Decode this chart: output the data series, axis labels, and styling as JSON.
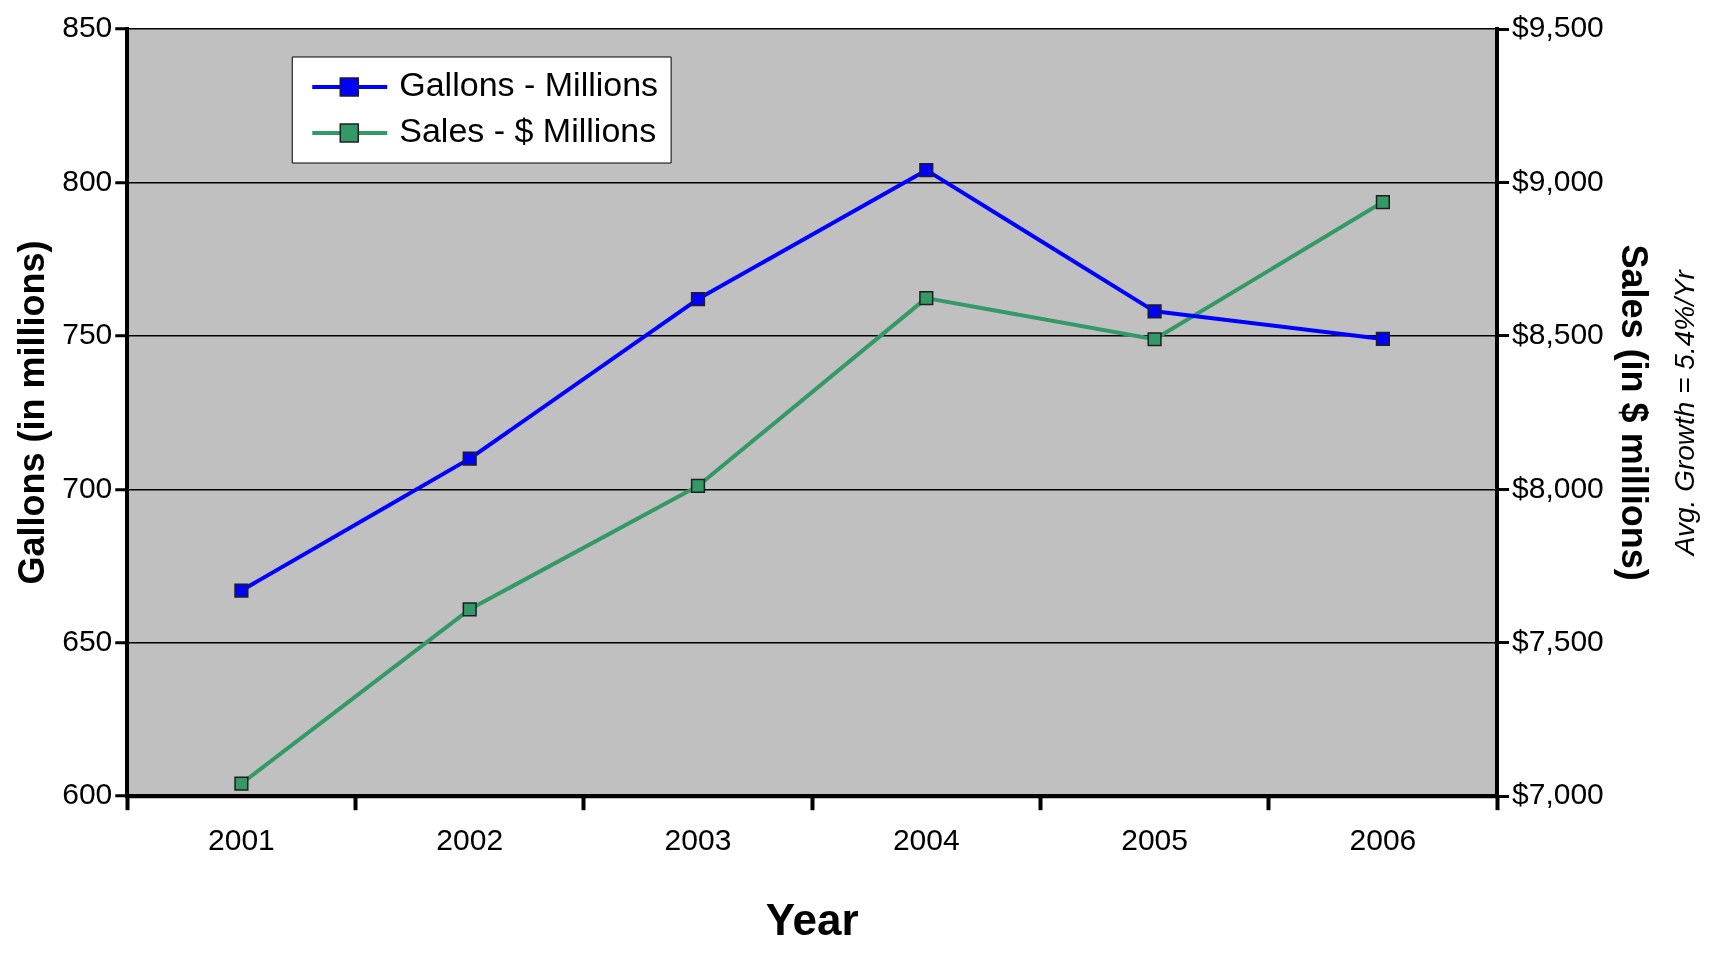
{
  "chart_data": {
    "type": "line",
    "xlabel": "Year",
    "ylabel": "Gallons (in millions)",
    "y2label": "Sales (in $ millions)",
    "categories": [
      "2001",
      "2002",
      "2003",
      "2004",
      "2005",
      "2006"
    ],
    "series": [
      {
        "name": "Gallons - Millions",
        "color": "#0000ff",
        "values": [
          667,
          710,
          762,
          804,
          758,
          749
        ]
      },
      {
        "name": "Sales - $ Millions",
        "color": "#339966",
        "axis": "y2",
        "values": [
          7041,
          7609,
          8011,
          8623,
          8489,
          8936
        ]
      }
    ],
    "ylim": [
      600,
      850
    ],
    "yticks": [
      600,
      650,
      700,
      750,
      800,
      850
    ],
    "y2lim": [
      7000,
      9500
    ],
    "y2ticks": [
      {
        "value": 7000,
        "label": "$7,000"
      },
      {
        "value": 7500,
        "label": "$7,500"
      },
      {
        "value": 8000,
        "label": "$8,000"
      },
      {
        "value": 8500,
        "label": "$8,500"
      },
      {
        "value": 9000,
        "label": "$9,000"
      },
      {
        "value": 9500,
        "label": "$9,500"
      }
    ],
    "grid": "y",
    "legend": "top left",
    "marker": "square",
    "line_style": "solid",
    "annotations": [
      "Avg. Growth = 5.4%/Yr"
    ]
  }
}
